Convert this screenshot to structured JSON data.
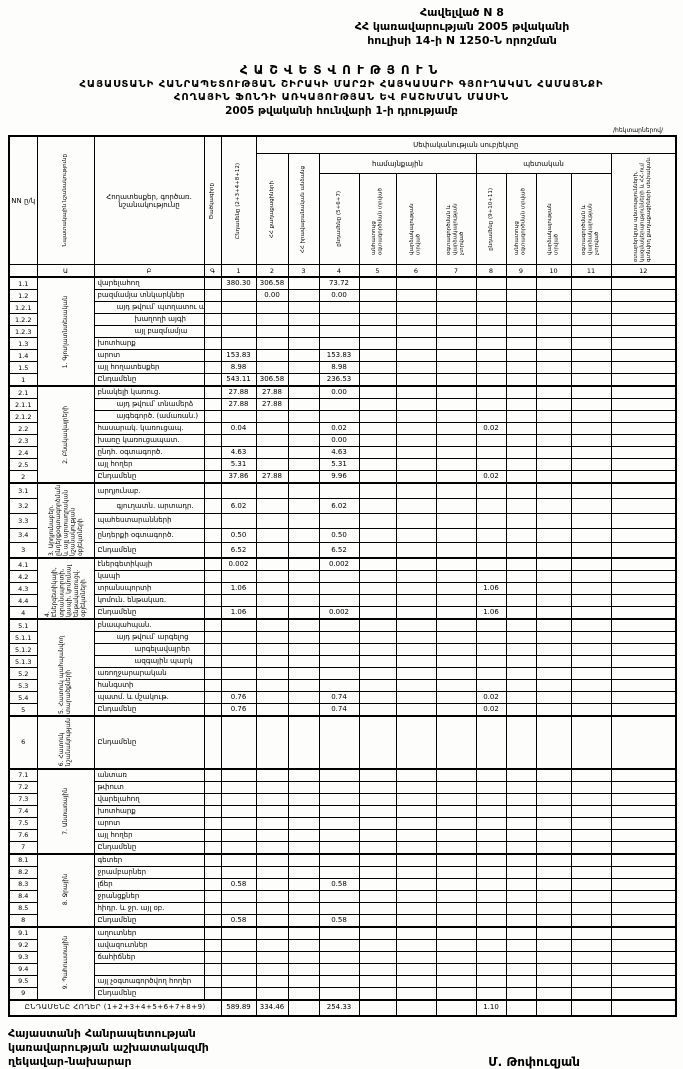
{
  "annex": {
    "line1": "Հավելված N 8",
    "line2": "ՀՀ կառավարության 2005 թվականի",
    "line3": "հուլիսի 14-ի N 1250-Ն որոշման"
  },
  "title": {
    "line1": "ՀԱՇՎԵՏՎՈՒԹՅՈՒՆ",
    "line2": "ՀԱՅԱՍՏԱՆԻ ՀԱՆՐԱՊԵՏՈՒԹՅԱՆ ՇԻՐԱԿԻ ՄԱՐԶԻ ՀԱՅԿԱՍԱՐԻ ԳՅՈՒՂԱԿԱՆ ՀԱՄԱՅՆՔԻ",
    "line3": "ՀՈՂԱՅԻՆ ՖՈՆԴԻ ԱՌԿԱՅՈՒԹՅԱՆ ԵՎ ԲԱՇԽՄԱՆ ՄԱՍԻՆ",
    "line4": "2005 թվականի հունվարի 1-ի դրությամբ"
  },
  "units_note": "/հեկտարներով/",
  "table": {
    "header": {
      "col_nn": "NN ը/կ",
      "col_purpose": "Նպատակային նշանակությունը",
      "col_landtype": "Հողատեսքեր, գործառ. նշանակությունը",
      "col_code": "Ծածկագիրը",
      "subject_band": "Սեփականության սուբյեկտը",
      "group_community": "համայնքային",
      "group_state": "պետական",
      "c1": "Ընդամենը (2+3+4+8+12)",
      "c2": "ՀՀ քաղաքացիների",
      "c3": "ՀՀ իրավաբանական անձանց",
      "c4": "ընդամենը (5+6+7)",
      "c5": "անհատույց օգտագործման տրված",
      "c6": "վարձակալության տրված",
      "c7": "օգտագործման և վարձակալության չտրված",
      "c8": "ընդամենը (9+10+11)",
      "c9": "անհատույց օգտագործման տրված",
      "c10": "վարձակալության տրված",
      "c11": "օգտագործման և վարձակալության չտրված",
      "c12": "օտարերկրյա պետությունների, կազմակերպությունների և ՀՀ-ում գտնվող քաղաքացիների սեփական.",
      "nums": [
        "",
        "Ա",
        "Բ",
        "Գ",
        "1",
        "2",
        "3",
        "4",
        "5",
        "6",
        "7",
        "8",
        "9",
        "10",
        "11",
        "12"
      ]
    },
    "sections": [
      {
        "label": "1. Գյուղատնտեսական",
        "rows": [
          {
            "num": "1.1",
            "label": "վարելահող",
            "vals": {
              "c1": "380.30",
              "c2": "306.58",
              "c4": "73.72"
            }
          },
          {
            "num": "1.2",
            "label": "բազմամյա տնկարկներ",
            "vals": {
              "c2": "0.00",
              "c4": "0.00"
            }
          },
          {
            "num": "1.2.1",
            "label": "այդ թվում՝ պտղատու այգի",
            "indent": 1
          },
          {
            "num": "1.2.2",
            "label": "խաղողի այգի",
            "indent": 2
          },
          {
            "num": "1.2.3",
            "label": "այլ բազմամյա",
            "indent": 2
          },
          {
            "num": "1.3",
            "label": "խոտհարք"
          },
          {
            "num": "1.4",
            "label": "արոտ",
            "vals": {
              "c1": "153.83",
              "c4": "153.83"
            }
          },
          {
            "num": "1.5",
            "label": "այլ հողատեսքեր",
            "vals": {
              "c1": "8.98",
              "c4": "8.98"
            }
          },
          {
            "num": "1",
            "label": "Ընդամենը",
            "total": true,
            "vals": {
              "c1": "543.11",
              "c2": "306.58",
              "c4": "236.53"
            }
          }
        ]
      },
      {
        "label": "2. Բնակավայրերի",
        "rows": [
          {
            "num": "2.1",
            "label": "բնակելի կառուց.",
            "vals": {
              "c1": "27.88",
              "c2": "27.88",
              "c4": "0.00"
            }
          },
          {
            "num": "2.1.1",
            "label": "այդ թվում՝ տնամերձ",
            "indent": 1,
            "vals": {
              "c1": "27.88",
              "c2": "27.88"
            }
          },
          {
            "num": "2.1.2",
            "label": "այգեգործ. (ամառան.)",
            "indent": 1
          },
          {
            "num": "2.2",
            "label": "հասարակ. կառուցապ.",
            "vals": {
              "c1": "0.04",
              "c4": "0.02",
              "c8": "0.02"
            }
          },
          {
            "num": "2.3",
            "label": "խառը կառուցապատ.",
            "vals": {
              "c4": "0.00"
            }
          },
          {
            "num": "2.4",
            "label": "ընդհ. օգտագործ.",
            "vals": {
              "c1": "4.63",
              "c4": "4.63"
            }
          },
          {
            "num": "2.5",
            "label": "այլ հողեր",
            "vals": {
              "c1": "5.31",
              "c4": "5.31"
            }
          },
          {
            "num": "2",
            "label": "Ընդամենը",
            "total": true,
            "vals": {
              "c1": "37.86",
              "c2": "27.88",
              "c4": "9.96",
              "c8": "0.02"
            }
          }
        ]
      },
      {
        "label": "3. Արդյունաբեր. ընդերքօգտագործման և այլ արտադրական նշանակության օբյեկտների",
        "rows": [
          {
            "num": "3.1",
            "label": "արդյունաբ."
          },
          {
            "num": "3.2",
            "label": "գյուղատն. արտադր.",
            "indent": 1,
            "vals": {
              "c1": "6.02",
              "c4": "6.02"
            }
          },
          {
            "num": "3.3",
            "label": "պահեստարանների"
          },
          {
            "num": "3.4",
            "label": "ընդերքի օգտագործ.",
            "vals": {
              "c1": "0.50",
              "c4": "0.50"
            }
          },
          {
            "num": "3",
            "label": "Ընդամենը",
            "total": true,
            "vals": {
              "c1": "6.52",
              "c4": "6.52"
            }
          }
        ]
      },
      {
        "label": "4. Էներգետիկայի, տրանսպորտի, կապի, կոմունալ ենթակառուցվ. օբյեկտների",
        "rows": [
          {
            "num": "4.1",
            "label": "էներգետիկայի",
            "vals": {
              "c1": "0.002",
              "c4": "0.002"
            }
          },
          {
            "num": "4.2",
            "label": "կապի"
          },
          {
            "num": "4.3",
            "label": "տրանսպորտի",
            "vals": {
              "c1": "1.06",
              "c8": "1.06"
            }
          },
          {
            "num": "4.4",
            "label": "կոմուն. ենթակառ."
          },
          {
            "num": "4",
            "label": "Ընդամենը",
            "total": true,
            "vals": {
              "c1": "1.06",
              "c4": "0.002",
              "c8": "1.06"
            }
          }
        ]
      },
      {
        "label": "5. Հատուկ պահպանվող տարածքների",
        "rows": [
          {
            "num": "5.1",
            "label": "բնապահպան."
          },
          {
            "num": "5.1.1",
            "label": "այդ թվում՝ արգելոց",
            "indent": 1
          },
          {
            "num": "5.1.2",
            "label": "արգելավայրեր",
            "indent": 2
          },
          {
            "num": "5.1.3",
            "label": "ազգային պարկ",
            "indent": 2
          },
          {
            "num": "5.2",
            "label": "առողջարարական"
          },
          {
            "num": "5.3",
            "label": "հանգստի"
          },
          {
            "num": "5.4",
            "label": "պատմ. և մշակութ.",
            "vals": {
              "c1": "0.76",
              "c4": "0.74",
              "c8": "0.02"
            }
          },
          {
            "num": "5",
            "label": "Ընդամենը",
            "total": true,
            "vals": {
              "c1": "0.76",
              "c4": "0.74",
              "c8": "0.02"
            }
          }
        ]
      },
      {
        "label": "6. Հատուկ նշանակության",
        "tall": true,
        "rows": [
          {
            "num": "6",
            "label": "Ընդամենը",
            "total": true
          }
        ]
      },
      {
        "label": "7. Անտառային",
        "rows": [
          {
            "num": "7.1",
            "label": "անտառ"
          },
          {
            "num": "7.2",
            "label": "թփուտ"
          },
          {
            "num": "7.3",
            "label": "վարելահող"
          },
          {
            "num": "7.4",
            "label": "խոտհարք"
          },
          {
            "num": "7.5",
            "label": "արոտ"
          },
          {
            "num": "7.6",
            "label": "այլ հողեր"
          },
          {
            "num": "7",
            "label": "Ընդամենը",
            "total": true
          }
        ]
      },
      {
        "label": "8. Ջրային",
        "rows": [
          {
            "num": "8.1",
            "label": "գետեր"
          },
          {
            "num": "8.2",
            "label": "ջրամբարներ"
          },
          {
            "num": "8.3",
            "label": "լճեր",
            "vals": {
              "c1": "0.58",
              "c4": "0.58"
            }
          },
          {
            "num": "8.4",
            "label": "ջրանցքներ"
          },
          {
            "num": "8.5",
            "label": "հիդր. և ջր. այլ օբ."
          },
          {
            "num": "8",
            "label": "Ընդամենը",
            "total": true,
            "vals": {
              "c1": "0.58",
              "c4": "0.58"
            }
          }
        ]
      },
      {
        "label": "9. Պահուստային",
        "rows": [
          {
            "num": "9.1",
            "label": "աղուտներ"
          },
          {
            "num": "9.2",
            "label": "ավազուտներ"
          },
          {
            "num": "9.3",
            "label": "ճահիճներ"
          },
          {
            "num": "9.4",
            "label": ""
          },
          {
            "num": "9.5",
            "label": "այլ չօգտագործվող հողեր"
          },
          {
            "num": "9",
            "label": "Ընդամենը",
            "total": true
          }
        ]
      }
    ],
    "grand_total": {
      "label": "ԸՆԴԱՄԵՆԸ ՀՈՂԵՐ (1+2+3+4+5+6+7+8+9)",
      "vals": {
        "c1": "589.89",
        "c2": "334.46",
        "c4": "254.33",
        "c8": "1.10"
      }
    }
  },
  "footer": {
    "left1": "Հայաստանի Հանրապետության",
    "left2": "կառավարության աշխատակազմի",
    "left3": "ղեկավար-նախարար",
    "signature": "Մ. Թոփուզյան"
  }
}
